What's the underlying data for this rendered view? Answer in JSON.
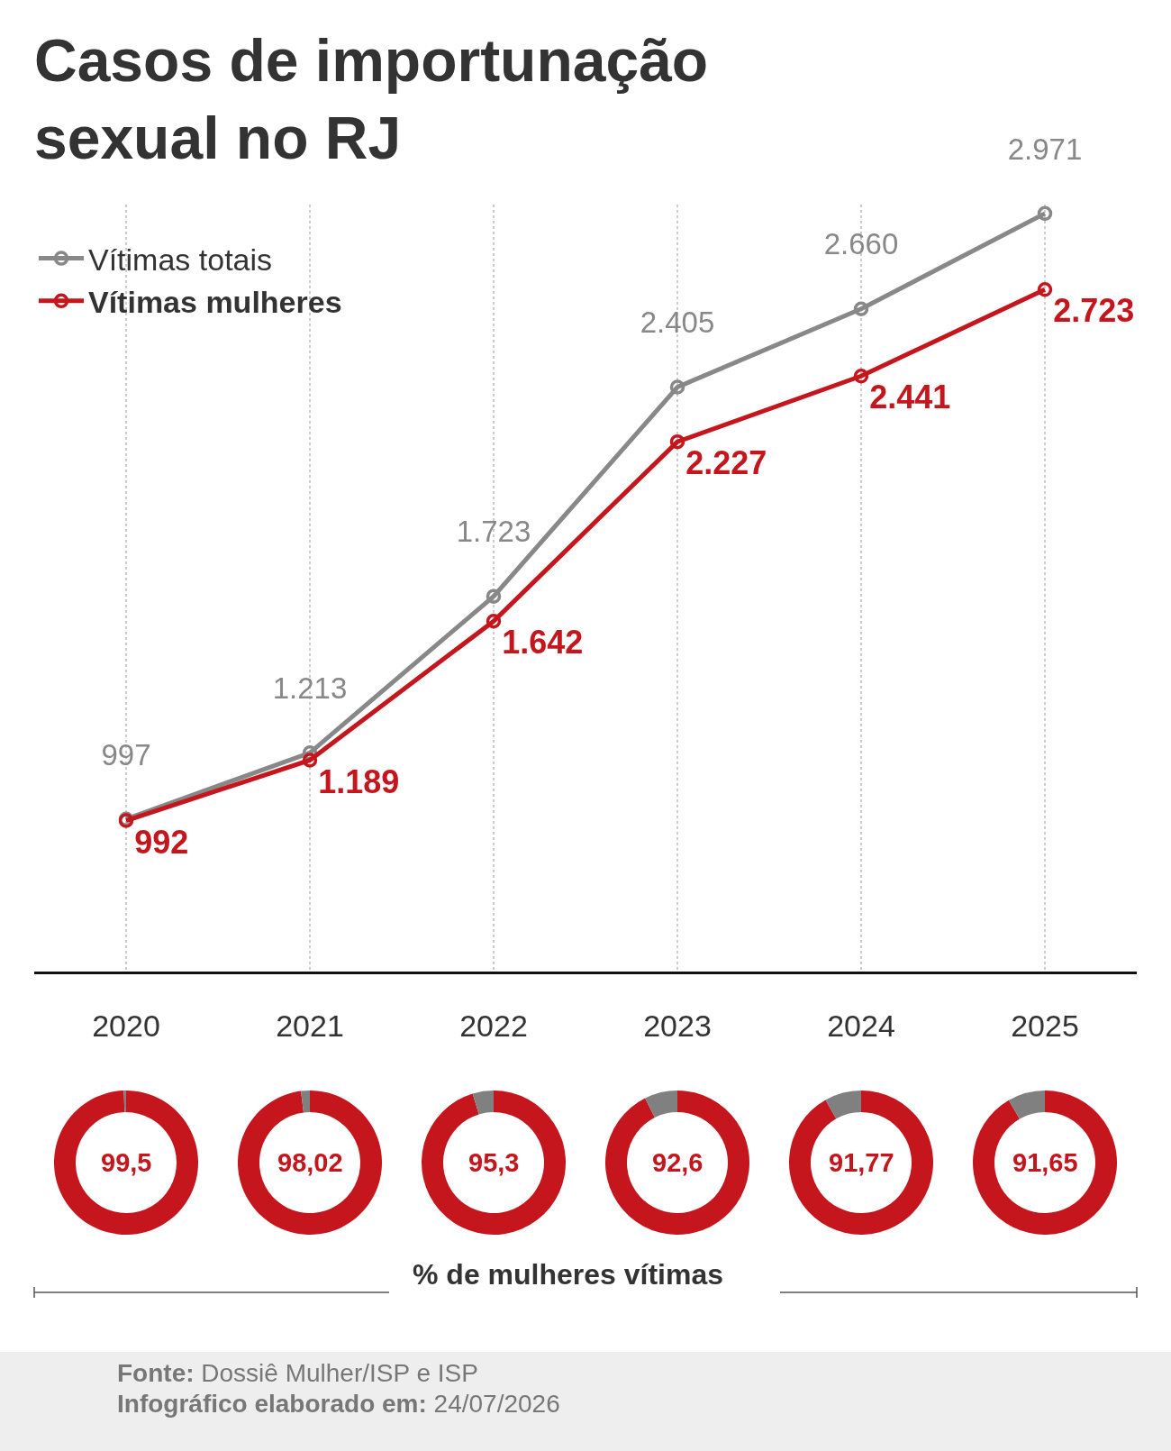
{
  "chart_data": [
    {
      "type": "line",
      "title": "Casos de importunação sexual no RJ",
      "categories": [
        "2020",
        "2021",
        "2022",
        "2023",
        "2024",
        "2025"
      ],
      "ylim": [
        500,
        3000
      ],
      "grid": "x",
      "legend": "top left",
      "marker": "circle",
      "line_style": "solid",
      "series": [
        {
          "name": "Vítimas totais",
          "color": "#888888",
          "values": [
            997,
            1213,
            1723,
            2405,
            2660,
            2971
          ],
          "value_labels": [
            "997",
            "1.213",
            "1.723",
            "2.405",
            "2.660",
            "2.971"
          ]
        },
        {
          "name": "Vítimas mulheres",
          "color": "#c4161c",
          "values": [
            992,
            1189,
            1642,
            2227,
            2441,
            2723
          ],
          "value_labels": [
            "992",
            "1.189",
            "1.642",
            "2.227",
            "2.441",
            "2.723"
          ]
        }
      ],
      "annotations": [
        "% de mulheres vítimas",
        "Fonte: Dossiê Mulher/ISP e ISP",
        "Infográfico elaborado em: 24/07/2026"
      ]
    },
    {
      "type": "donut",
      "categories": [
        null,
        null
      ],
      "values": [
        99.5,
        0.5
      ],
      "colors": [
        "#c4161c",
        "#808080"
      ],
      "annotations": [
        "99,5"
      ]
    },
    {
      "type": "donut",
      "categories": [
        null,
        null
      ],
      "values": [
        98.02,
        1.98
      ],
      "colors": [
        "#c4161c",
        "#808080"
      ],
      "annotations": [
        "98,02"
      ]
    },
    {
      "type": "donut",
      "categories": [
        null,
        null
      ],
      "values": [
        95.3,
        4.7
      ],
      "colors": [
        "#c4161c",
        "#808080"
      ],
      "annotations": [
        "95,3"
      ]
    },
    {
      "type": "donut",
      "categories": [
        null,
        null
      ],
      "values": [
        92.6,
        7.4
      ],
      "colors": [
        "#c4161c",
        "#808080"
      ],
      "annotations": [
        "92,6"
      ]
    },
    {
      "type": "donut",
      "categories": [
        null,
        null
      ],
      "values": [
        91.77,
        8.23
      ],
      "colors": [
        "#c4161c",
        "#808080"
      ],
      "annotations": [
        "91,77"
      ]
    },
    {
      "type": "donut",
      "categories": [
        null,
        null
      ],
      "values": [
        91.65,
        8.35
      ],
      "colors": [
        "#c4161c",
        "#808080"
      ],
      "annotations": [
        "91,65"
      ]
    }
  ]
}
